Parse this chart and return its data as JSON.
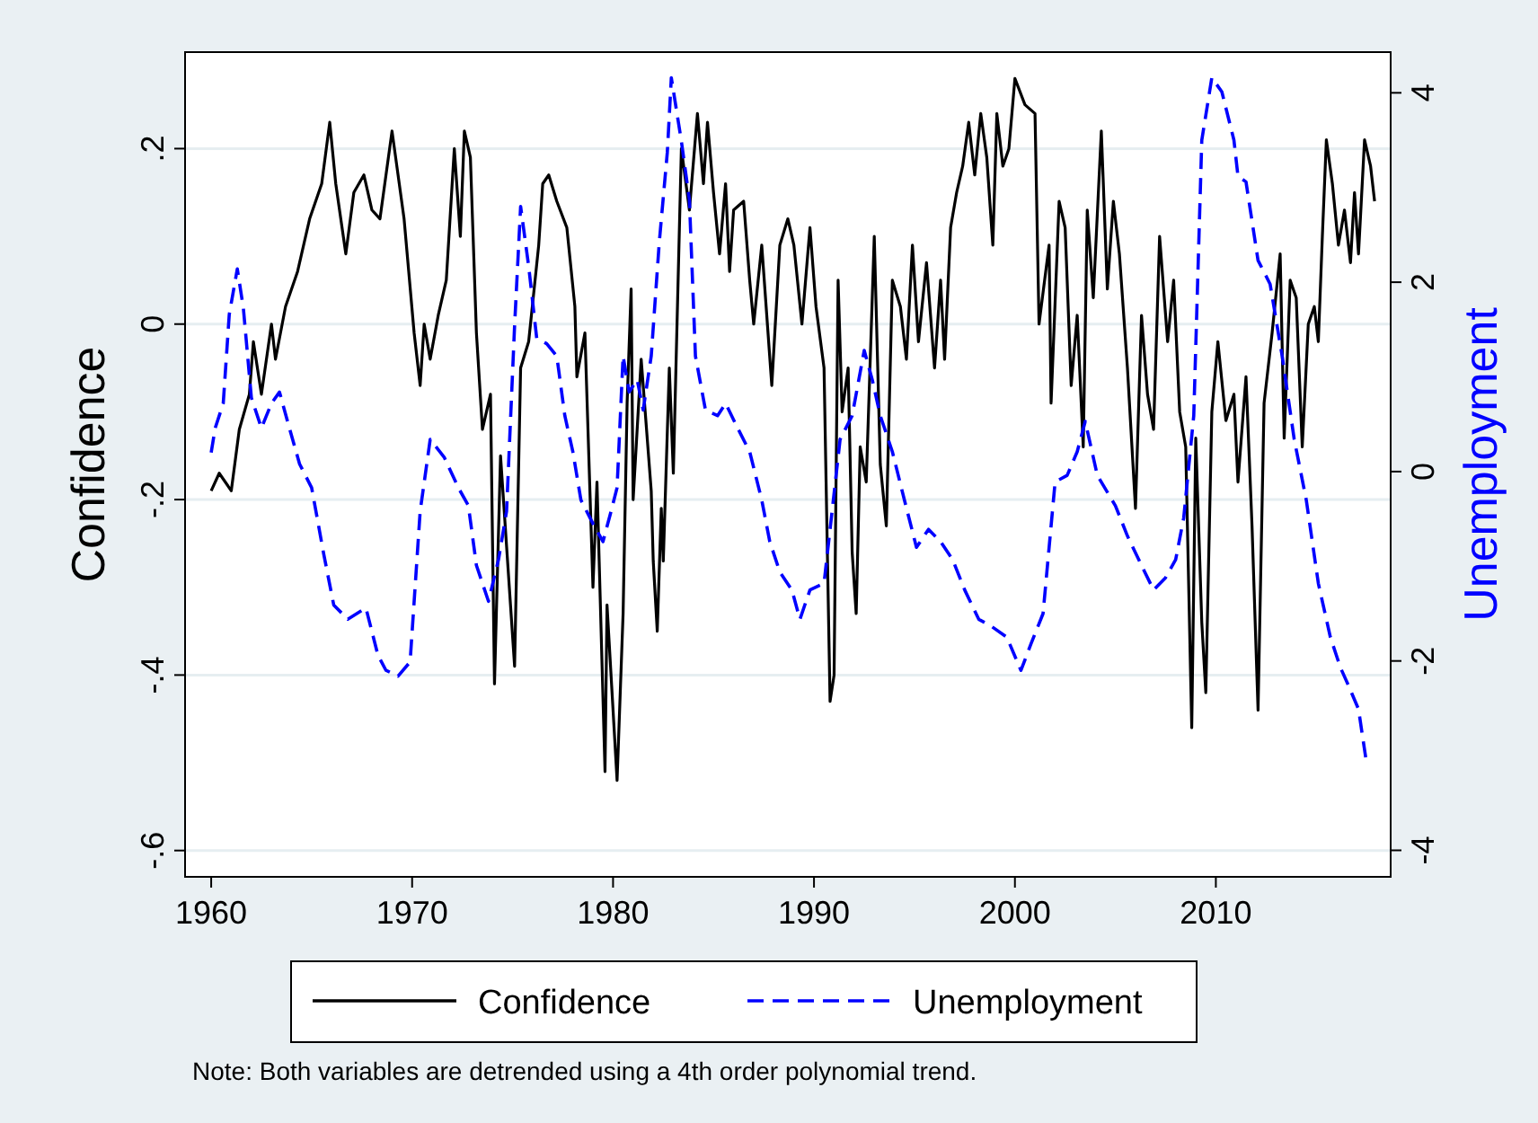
{
  "chart_data": {
    "type": "line",
    "ylabel": "Confidence",
    "y2label": "Unemployment",
    "annotations": [
      "Note: Both variables are detrended using a 4th order polynomial trend."
    ],
    "xlim": [
      1958.7,
      2018.7
    ],
    "xticks": [
      1960,
      1970,
      1980,
      1990,
      2000,
      2010
    ],
    "ylim": [
      -0.63,
      0.31
    ],
    "yticks": [
      {
        "value": -0.6,
        "label": "-.6"
      },
      {
        "value": -0.4,
        "label": "-.4"
      },
      {
        "value": -0.2,
        "label": "-.2"
      },
      0,
      {
        "value": 0.2,
        "label": ".2"
      }
    ],
    "y2lim": [
      -4.28,
      4.43
    ],
    "y2ticks": [
      -4,
      -2,
      0,
      2,
      4
    ],
    "grid": "y",
    "legend": "bottom",
    "series": [
      {
        "name": "Confidence",
        "color": "#000000",
        "line_style": "solid",
        "x": [
          1960.0,
          1960.4,
          1961.0,
          1961.4,
          1961.9,
          1962.1,
          1962.5,
          1963.0,
          1963.2,
          1963.7,
          1964.3,
          1964.9,
          1965.5,
          1965.9,
          1966.2,
          1966.7,
          1967.1,
          1967.6,
          1968.0,
          1968.4,
          1969.0,
          1969.6,
          1970.1,
          1970.4,
          1970.6,
          1970.9,
          1971.3,
          1971.7,
          1972.1,
          1972.4,
          1972.6,
          1972.9,
          1973.2,
          1973.5,
          1973.9,
          1974.1,
          1974.4,
          1975.1,
          1975.4,
          1975.8,
          1976.3,
          1976.5,
          1976.8,
          1977.2,
          1977.7,
          1978.1,
          1978.2,
          1978.6,
          1979.0,
          1979.2,
          1979.6,
          1979.7,
          1980.2,
          1980.5,
          1980.7,
          1980.9,
          1981.0,
          1981.4,
          1981.6,
          1981.9,
          1982.0,
          1982.2,
          1982.4,
          1982.5,
          1982.8,
          1983.0,
          1983.4,
          1983.8,
          1984.2,
          1984.5,
          1984.7,
          1985.0,
          1985.3,
          1985.6,
          1985.8,
          1986.0,
          1986.5,
          1986.8,
          1987.0,
          1987.4,
          1987.9,
          1988.3,
          1988.7,
          1989.0,
          1989.4,
          1989.8,
          1990.1,
          1990.5,
          1990.8,
          1991.0,
          1991.2,
          1991.4,
          1991.7,
          1991.9,
          1992.1,
          1992.3,
          1992.6,
          1993.0,
          1993.3,
          1993.6,
          1993.9,
          1994.3,
          1994.6,
          1994.9,
          1995.2,
          1995.6,
          1996.0,
          1996.3,
          1996.5,
          1996.8,
          1997.1,
          1997.4,
          1997.7,
          1998.0,
          1998.3,
          1998.6,
          1998.9,
          1999.1,
          1999.4,
          1999.7,
          2000.0,
          2000.5,
          2001.0,
          2001.2,
          2001.7,
          2001.8,
          2002.2,
          2002.5,
          2002.8,
          2003.1,
          2003.4,
          2003.6,
          2003.9,
          2004.3,
          2004.6,
          2004.9,
          2005.2,
          2005.6,
          2006.0,
          2006.3,
          2006.6,
          2006.9,
          2007.2,
          2007.6,
          2007.9,
          2008.2,
          2008.5,
          2008.8,
          2009.0,
          2009.3,
          2009.5,
          2009.8,
          2010.1,
          2010.5,
          2010.9,
          2011.1,
          2011.5,
          2011.8,
          2012.1,
          2012.4,
          2012.8,
          2013.2,
          2013.4,
          2013.7,
          2014.0,
          2014.3,
          2014.6,
          2014.9,
          2015.1,
          2015.3,
          2015.5,
          2015.8,
          2016.1,
          2016.4,
          2016.7,
          2016.9,
          2017.1,
          2017.4,
          2017.7,
          2017.9
        ],
        "values": [
          -0.19,
          -0.17,
          -0.19,
          -0.12,
          -0.08,
          -0.02,
          -0.08,
          0.0,
          -0.04,
          0.02,
          0.06,
          0.12,
          0.16,
          0.23,
          0.16,
          0.08,
          0.15,
          0.17,
          0.13,
          0.12,
          0.22,
          0.12,
          -0.01,
          -0.07,
          0.0,
          -0.04,
          0.01,
          0.05,
          0.2,
          0.1,
          0.22,
          0.19,
          -0.01,
          -0.12,
          -0.08,
          -0.41,
          -0.15,
          -0.39,
          -0.05,
          -0.02,
          0.09,
          0.16,
          0.17,
          0.14,
          0.11,
          0.02,
          -0.06,
          -0.01,
          -0.3,
          -0.18,
          -0.51,
          -0.32,
          -0.52,
          -0.33,
          -0.09,
          0.04,
          -0.2,
          -0.04,
          -0.1,
          -0.19,
          -0.27,
          -0.35,
          -0.21,
          -0.27,
          -0.05,
          -0.17,
          0.2,
          0.13,
          0.24,
          0.16,
          0.23,
          0.15,
          0.08,
          0.16,
          0.06,
          0.13,
          0.14,
          0.05,
          0.0,
          0.09,
          -0.07,
          0.09,
          0.12,
          0.09,
          0.0,
          0.11,
          0.02,
          -0.05,
          -0.43,
          -0.4,
          0.05,
          -0.1,
          -0.05,
          -0.26,
          -0.33,
          -0.14,
          -0.18,
          0.1,
          -0.16,
          -0.23,
          0.05,
          0.02,
          -0.04,
          0.09,
          -0.02,
          0.07,
          -0.05,
          0.05,
          -0.04,
          0.11,
          0.15,
          0.18,
          0.23,
          0.17,
          0.24,
          0.19,
          0.09,
          0.24,
          0.18,
          0.2,
          0.28,
          0.25,
          0.24,
          0.0,
          0.09,
          -0.09,
          0.14,
          0.11,
          -0.07,
          0.01,
          -0.14,
          0.13,
          0.03,
          0.22,
          0.04,
          0.14,
          0.08,
          -0.05,
          -0.21,
          0.01,
          -0.08,
          -0.12,
          0.1,
          -0.02,
          0.05,
          -0.1,
          -0.14,
          -0.46,
          -0.13,
          -0.34,
          -0.42,
          -0.1,
          -0.02,
          -0.11,
          -0.08,
          -0.18,
          -0.06,
          -0.23,
          -0.44,
          -0.09,
          -0.01,
          0.08,
          -0.13,
          0.05,
          0.03,
          -0.14,
          0.0,
          0.02,
          -0.02,
          0.1,
          0.21,
          0.16,
          0.09,
          0.13,
          0.07,
          0.15,
          0.08,
          0.21,
          0.18,
          0.14
        ]
      },
      {
        "name": "Unemployment",
        "color": "#0000ff",
        "line_style": "dashed",
        "axis": "y2",
        "x": [
          1960.0,
          1960.2,
          1960.6,
          1960.9,
          1961.3,
          1961.6,
          1962.0,
          1962.5,
          1963.0,
          1963.4,
          1963.8,
          1964.4,
          1965.0,
          1965.6,
          1966.1,
          1966.8,
          1967.7,
          1968.3,
          1968.7,
          1969.3,
          1969.9,
          1970.4,
          1970.9,
          1971.6,
          1972.3,
          1972.8,
          1973.2,
          1973.8,
          1974.3,
          1974.7,
          1975.1,
          1975.4,
          1975.8,
          1976.2,
          1976.7,
          1977.2,
          1977.6,
          1978.0,
          1978.4,
          1979.0,
          1979.5,
          1979.9,
          1980.2,
          1980.5,
          1980.8,
          1981.2,
          1981.5,
          1981.9,
          1982.3,
          1982.7,
          1982.9,
          1983.4,
          1983.8,
          1984.1,
          1984.6,
          1985.2,
          1985.6,
          1986.2,
          1986.8,
          1987.4,
          1987.8,
          1988.3,
          1988.9,
          1989.3,
          1989.8,
          1990.5,
          1990.8,
          1991.3,
          1991.9,
          1992.5,
          1992.9,
          1993.3,
          1993.9,
          1994.5,
          1995.1,
          1995.7,
          1996.3,
          1996.9,
          1997.5,
          1998.2,
          1998.8,
          1999.6,
          2000.3,
          2000.8,
          2001.4,
          2002.0,
          2002.6,
          2003.1,
          2003.5,
          2004.1,
          2005.0,
          2005.6,
          2006.3,
          2006.9,
          2007.5,
          2008.0,
          2008.4,
          2008.9,
          2009.3,
          2009.8,
          2010.3,
          2010.9,
          2011.1,
          2011.5,
          2012.1,
          2012.7,
          2013.3,
          2013.9,
          2014.5,
          2015.1,
          2015.7,
          2016.2,
          2016.6,
          2017.1,
          2017.5
        ],
        "values": [
          0.2,
          0.46,
          0.72,
          1.66,
          2.14,
          1.73,
          0.78,
          0.46,
          0.72,
          0.84,
          0.53,
          0.08,
          -0.17,
          -0.87,
          -1.41,
          -1.56,
          -1.44,
          -1.94,
          -2.1,
          -2.16,
          -2.01,
          -0.42,
          0.34,
          0.15,
          -0.17,
          -0.36,
          -0.99,
          -1.37,
          -0.93,
          -0.42,
          1.54,
          2.8,
          2.17,
          1.41,
          1.35,
          1.22,
          0.59,
          0.21,
          -0.3,
          -0.55,
          -0.74,
          -0.42,
          -0.17,
          1.22,
          0.84,
          0.97,
          0.65,
          1.22,
          2.42,
          3.37,
          4.16,
          3.49,
          2.87,
          1.22,
          0.65,
          0.59,
          0.72,
          0.46,
          0.21,
          -0.3,
          -0.74,
          -1.06,
          -1.25,
          -1.56,
          -1.25,
          -1.18,
          -0.61,
          0.34,
          0.59,
          1.28,
          0.97,
          0.59,
          0.21,
          -0.3,
          -0.8,
          -0.61,
          -0.74,
          -0.93,
          -1.25,
          -1.56,
          -1.63,
          -1.75,
          -2.1,
          -1.82,
          -1.5,
          -0.11,
          -0.04,
          0.21,
          0.53,
          -0.04,
          -0.36,
          -0.68,
          -0.99,
          -1.25,
          -1.12,
          -0.93,
          -0.49,
          0.59,
          3.5,
          4.16,
          4.01,
          3.5,
          3.12,
          3.06,
          2.23,
          1.98,
          1.22,
          0.34,
          -0.3,
          -1.18,
          -1.75,
          -2.07,
          -2.26,
          -2.51,
          -3.08
        ]
      }
    ]
  }
}
